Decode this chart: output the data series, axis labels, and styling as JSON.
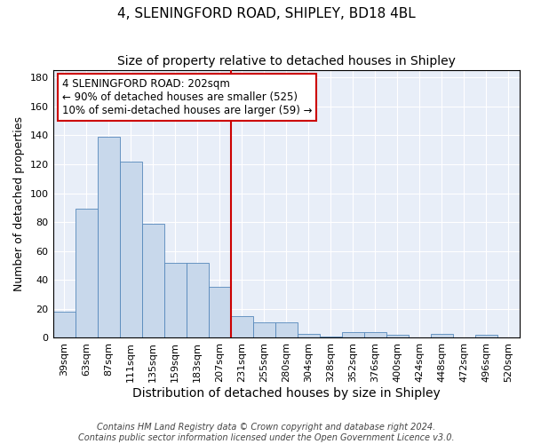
{
  "title": "4, SLENINGFORD ROAD, SHIPLEY, BD18 4BL",
  "subtitle": "Size of property relative to detached houses in Shipley",
  "xlabel": "Distribution of detached houses by size in Shipley",
  "ylabel": "Number of detached properties",
  "categories": [
    "39sqm",
    "63sqm",
    "87sqm",
    "111sqm",
    "135sqm",
    "159sqm",
    "183sqm",
    "207sqm",
    "231sqm",
    "255sqm",
    "280sqm",
    "304sqm",
    "328sqm",
    "352sqm",
    "376sqm",
    "400sqm",
    "424sqm",
    "448sqm",
    "472sqm",
    "496sqm",
    "520sqm"
  ],
  "values": [
    18,
    89,
    139,
    122,
    79,
    52,
    52,
    35,
    15,
    11,
    11,
    3,
    1,
    4,
    4,
    2,
    0,
    3,
    0,
    2,
    0
  ],
  "bar_color": "#c8d8eb",
  "bar_edge_color": "#5588bb",
  "vline_color": "#cc0000",
  "vline_x_index": 7,
  "annotation_line1": "4 SLENINGFORD ROAD: 202sqm",
  "annotation_line2": "← 90% of detached houses are smaller (525)",
  "annotation_line3": "10% of semi-detached houses are larger (59) →",
  "annotation_box_facecolor": "#ffffff",
  "annotation_box_edgecolor": "#cc0000",
  "ylim": [
    0,
    185
  ],
  "yticks": [
    0,
    20,
    40,
    60,
    80,
    100,
    120,
    140,
    160,
    180
  ],
  "plot_bg_color": "#e8eef8",
  "grid_color": "#ffffff",
  "title_fontsize": 11,
  "subtitle_fontsize": 10,
  "xlabel_fontsize": 10,
  "ylabel_fontsize": 9,
  "tick_fontsize": 8,
  "annotation_fontsize": 8.5,
  "footer_fontsize": 7,
  "footer": "Contains HM Land Registry data © Crown copyright and database right 2024.\nContains public sector information licensed under the Open Government Licence v3.0."
}
